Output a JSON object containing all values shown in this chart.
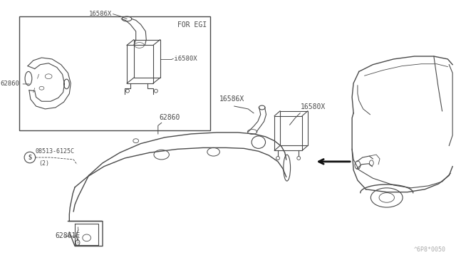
{
  "bg_color": "#ffffff",
  "line_color": "#4a4a4a",
  "thin_color": "#888888",
  "title_diagram": "FOR EGI",
  "labels": {
    "16586X_inset": "16586X",
    "16580X_inset": "i6580X",
    "62860_inset": "62860",
    "16586X_main": "16586X",
    "16580X_main": "16580X",
    "62860_main": "62860",
    "screw": "08513-6125C",
    "screw_qty": "(2)",
    "screw_sym": "S",
    "62861E": "62861E"
  },
  "watermark": "^6P8*0050",
  "fig_width": 6.4,
  "fig_height": 3.72,
  "dpi": 100
}
